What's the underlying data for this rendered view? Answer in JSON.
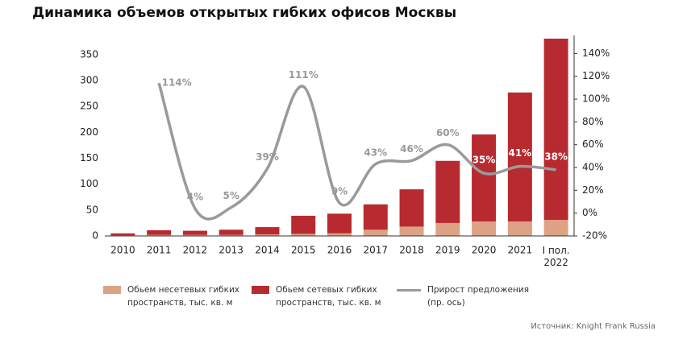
{
  "chart_data": {
    "type": "bar",
    "title": "Динамика объемов открытых гибких офисов Москвы",
    "source": "Источник: Knight Frank Russia",
    "categories": [
      "2010",
      "2011",
      "2012",
      "2013",
      "2014",
      "2015",
      "2016",
      "2017",
      "2018",
      "2019",
      "2020",
      "2021",
      "I пол. 2022"
    ],
    "series": [
      {
        "name": "Обьем несетевых гибких пространств, тыс. кв. м",
        "color": "#dca283",
        "values": [
          1,
          2,
          2,
          2,
          3,
          4,
          5,
          12,
          18,
          25,
          28,
          28,
          31
        ]
      },
      {
        "name": "Обьем сетевых гибких пространств, тыс. кв. м",
        "color": "#b72a30",
        "values": [
          4,
          9,
          8,
          10,
          14,
          35,
          38,
          49,
          72,
          120,
          168,
          249,
          350
        ]
      },
      {
        "name": "Прирост предложения (пр. ось)",
        "color": "#9a9a9a",
        "axis": "y2",
        "type": "line",
        "values": [
          null,
          114,
          4,
          5,
          39,
          111,
          9,
          43,
          46,
          60,
          35,
          41,
          38
        ],
        "value_labels": [
          null,
          "114%",
          "4%",
          "5%",
          "39%",
          "111%",
          "9%",
          "43%",
          "46%",
          "60%",
          "35%",
          "41%",
          "38%"
        ]
      }
    ],
    "ylim": [
      0,
      381
    ],
    "yticks": [
      0,
      50,
      100,
      150,
      200,
      250,
      300,
      350
    ],
    "y2lim": [
      -20,
      153
    ],
    "y2ticks": [
      {
        "value": -20,
        "label": "-20%"
      },
      {
        "value": 0,
        "label": "0%"
      },
      {
        "value": 20,
        "label": "20%"
      },
      {
        "value": 40,
        "label": "40%"
      },
      {
        "value": 60,
        "label": "60%"
      },
      {
        "value": 80,
        "label": "80%"
      },
      {
        "value": 100,
        "label": "100%"
      },
      {
        "value": 120,
        "label": "120%"
      },
      {
        "value": 140,
        "label": "140%"
      }
    ],
    "stacked": true
  }
}
